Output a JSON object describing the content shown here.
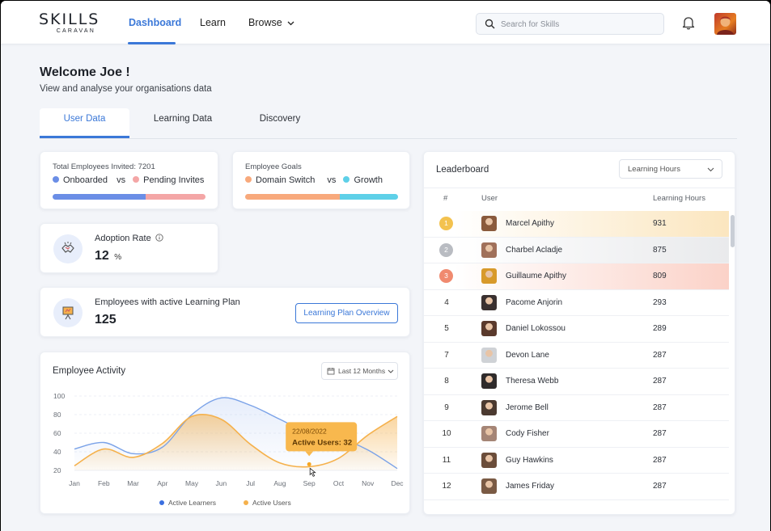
{
  "brand": {
    "main": "SKILLS",
    "sub": "CARAVAN"
  },
  "nav": {
    "items": [
      {
        "label": "Dashboard"
      },
      {
        "label": "Learn"
      },
      {
        "label": "Browse"
      }
    ]
  },
  "search": {
    "placeholder": "Search for Skills"
  },
  "welcome": {
    "title": "Welcome Joe !",
    "subtitle": "View and analyse your organisations data"
  },
  "tabs": [
    {
      "label": "User Data"
    },
    {
      "label": "Learning Data"
    },
    {
      "label": "Discovery"
    }
  ],
  "invites": {
    "label": "Total Employees Invited: 7201",
    "a": "Onboarded",
    "vs": "vs",
    "b": "Pending Invites",
    "colors": {
      "a": "#6b8ee6",
      "b": "#f4a6a6"
    },
    "fill_fraction": 0.61
  },
  "goals": {
    "label": "Employee Goals",
    "a": "Domain Switch",
    "vs": "vs",
    "b": "Growth",
    "colors": {
      "a": "#f8a97c",
      "b": "#5ed0e8"
    },
    "fill_fraction": 0.62
  },
  "adoption": {
    "label": "Adoption Rate",
    "value": "12",
    "unit": "%",
    "info_icon": "info-icon"
  },
  "active_plan": {
    "label": "Employees with active Learning Plan",
    "value": "125",
    "button": "Learning Plan Overview"
  },
  "activity": {
    "title": "Employee Activity",
    "range": "Last 12 Months"
  },
  "chart_data": {
    "type": "area",
    "title": "Employee Activity",
    "categories": [
      "Jan",
      "Feb",
      "Mar",
      "Apr",
      "May",
      "Jun",
      "Jul",
      "Aug",
      "Sep",
      "Oct",
      "Nov",
      "Dec"
    ],
    "y_ticks": [
      20,
      40,
      60,
      80,
      100
    ],
    "ylim": [
      20,
      100
    ],
    "series": [
      {
        "name": "Active Learners",
        "color": "#7aa2e8",
        "values": [
          43,
          50,
          38,
          45,
          80,
          98,
          90,
          75,
          60,
          55,
          42,
          22
        ]
      },
      {
        "name": "Active Users",
        "color": "#f5b14c",
        "values": [
          25,
          43,
          34,
          49,
          78,
          75,
          48,
          28,
          24,
          33,
          58,
          78
        ]
      }
    ],
    "tooltip": {
      "date": "22/08/2022",
      "text": "Active Users: 32"
    },
    "legend": "bottom"
  },
  "leaderboard": {
    "title": "Leaderboard",
    "metric": "Learning Hours",
    "columns": [
      "#",
      "User",
      "Learning Hours"
    ],
    "rows": [
      {
        "rank": "1",
        "name": "Marcel Apithy",
        "hours": "931",
        "medal": "#f3c24f",
        "highlight": "#fbe6bf",
        "avatar": "#8a5a3c"
      },
      {
        "rank": "2",
        "name": "Charbel Acladje",
        "hours": "875",
        "medal": "#b9bcc2",
        "highlight": "#e9eaec",
        "avatar": "#a0705a"
      },
      {
        "rank": "3",
        "name": "Guillaume Apithy",
        "hours": "809",
        "medal": "#f08a6f",
        "highlight": "#fbd2c8",
        "avatar": "#d89a2b"
      },
      {
        "rank": "4",
        "name": "Pacome Anjorin",
        "hours": "293",
        "avatar": "#3a3130"
      },
      {
        "rank": "5",
        "name": "Daniel Lokossou",
        "hours": "289",
        "avatar": "#5a3a2c"
      },
      {
        "rank": "7",
        "name": "Devon Lane",
        "hours": "287",
        "avatar": "#cfd2d6"
      },
      {
        "rank": "8",
        "name": "Theresa Webb",
        "hours": "287",
        "avatar": "#2f2b2b"
      },
      {
        "rank": "9",
        "name": "Jerome Bell",
        "hours": "287",
        "avatar": "#4b3a30"
      },
      {
        "rank": "10",
        "name": "Cody Fisher",
        "hours": "287",
        "avatar": "#a58576"
      },
      {
        "rank": "11",
        "name": "Guy Hawkins",
        "hours": "287",
        "avatar": "#6b4d3a"
      },
      {
        "rank": "12",
        "name": "James Friday",
        "hours": "287",
        "avatar": "#7a5a44"
      }
    ]
  }
}
